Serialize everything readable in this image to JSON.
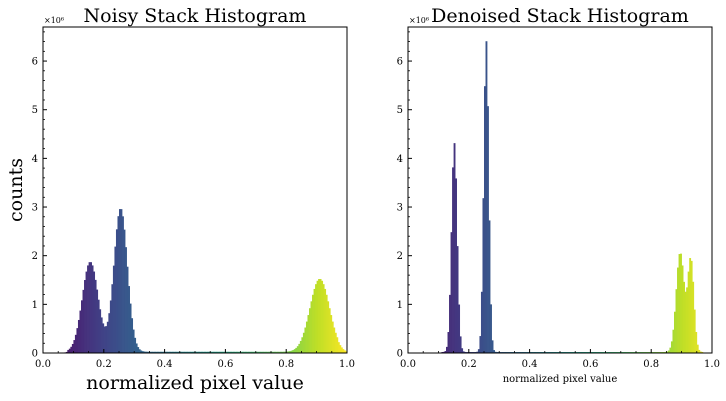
{
  "chart_data": [
    {
      "type": "bar",
      "title": "Noisy Stack Histogram",
      "xlabel": "normalized pixel value",
      "ylabel": "counts",
      "y_multiplier": "×10⁶",
      "xlim": [
        0.0,
        1.0
      ],
      "ylim": [
        0,
        6.7
      ],
      "x_ticks": [
        "0.0",
        "0.2",
        "0.4",
        "0.6",
        "0.8",
        "1.0"
      ],
      "y_ticks": [
        "0",
        "1",
        "2",
        "3",
        "4",
        "5",
        "6"
      ],
      "colormap": "viridis",
      "peaks_millions": [
        {
          "center": 0.155,
          "height": 1.85,
          "sigma": 0.026
        },
        {
          "center": 0.255,
          "height": 2.95,
          "sigma": 0.022
        },
        {
          "center": 0.91,
          "height": 1.5,
          "sigma": 0.032
        }
      ],
      "baseline_millions": 0.025,
      "baseline_range": [
        0.08,
        0.97
      ]
    },
    {
      "type": "bar",
      "title": "Denoised Stack Histogram",
      "xlabel": "normalized pixel value",
      "ylabel": "",
      "y_multiplier": "×10⁶",
      "xlim": [
        0.0,
        1.0
      ],
      "ylim": [
        0,
        6.7
      ],
      "x_ticks": [
        "0.0",
        "0.2",
        "0.4",
        "0.6",
        "0.8",
        "1.0"
      ],
      "y_ticks": [
        "0",
        "1",
        "2",
        "3",
        "4",
        "5",
        "6"
      ],
      "colormap": "viridis",
      "peaks_millions": [
        {
          "center": 0.152,
          "height": 4.3,
          "sigma": 0.009
        },
        {
          "center": 0.257,
          "height": 6.4,
          "sigma": 0.008
        },
        {
          "center": 0.895,
          "height": 2.05,
          "sigma": 0.013
        },
        {
          "center": 0.93,
          "height": 1.9,
          "sigma": 0.01
        }
      ],
      "baseline_millions": 0.02,
      "baseline_range": [
        0.11,
        0.97
      ]
    }
  ]
}
